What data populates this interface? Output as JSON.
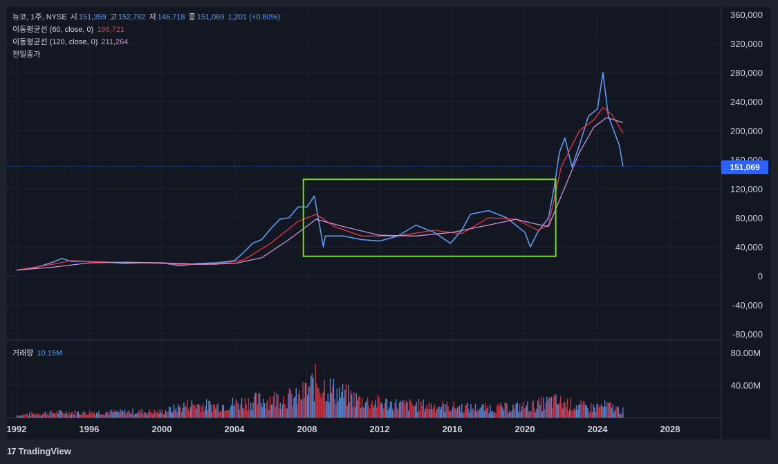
{
  "header": {
    "name": "뉴코, 1주, NYSE",
    "open_label": "시",
    "open": "151,359",
    "high_label": "고",
    "high": "152,782",
    "low_label": "저",
    "low": "146,718",
    "close_label": "종",
    "close": "151,069",
    "change": "1,201 (+0.80%)"
  },
  "indicators": [
    {
      "label": "이동평균선 (60, close, 0)",
      "value": "196,721",
      "color": "#f23645"
    },
    {
      "label": "이동평균선 (120, close, 0)",
      "value": "211,264",
      "color": "#ce93d8"
    },
    {
      "label": "전일종가",
      "value": ""
    }
  ],
  "volume_pane": {
    "label": "거래량",
    "value": "10.15M",
    "ticks": [
      "80.00M",
      "40.00M"
    ]
  },
  "price_tag": "151,069",
  "brand": "TradingView",
  "colors": {
    "bg": "#1e222d",
    "up": "#5b9cf6",
    "down": "#f23645",
    "ma60": "#f23645",
    "ma120": "#ce93d8",
    "box": "#76e01d"
  },
  "chart_data": {
    "type": "line",
    "title": "뉴코, 1주, NYSE",
    "x_ticks": [
      "1992",
      "1996",
      "2000",
      "2004",
      "2008",
      "2012",
      "2016",
      "2020",
      "2024",
      "2028"
    ],
    "y_ticks": [
      "360,000",
      "320,000",
      "280,000",
      "240,000",
      "200,000",
      "160,000",
      "120,000",
      "80,000",
      "40,000",
      "0",
      "-40,000",
      "-80,000"
    ],
    "ylim": [
      -80000,
      360000
    ],
    "xlim": [
      1992,
      2031
    ],
    "last_price": 151069,
    "series": [
      {
        "name": "",
        "color": "#5b9cf6",
        "x": [
          1992,
          1993,
          1994,
          1994.5,
          1995,
          1996,
          1997,
          1998,
          1999,
          2000,
          2001,
          2002,
          2003,
          2004,
          2004.5,
          2005,
          2005.5,
          2006,
          2006.5,
          2007,
          2007.5,
          2008,
          2008.4,
          2008.9,
          2009,
          2010,
          2011,
          2012,
          2013,
          2014,
          2015,
          2015.9,
          2016.5,
          2017,
          2018,
          2019,
          2019.5,
          2020,
          2020.3,
          2020.7,
          2021,
          2021.3,
          2021.6,
          2021.9,
          2022.2,
          2022.6,
          2023,
          2023.5,
          2024,
          2024.3,
          2024.6,
          2024.9,
          2025.2,
          2025.4
        ],
        "y": [
          8000,
          11000,
          19000,
          24000,
          20000,
          20000,
          19000,
          17000,
          18000,
          18000,
          14000,
          17000,
          18000,
          21000,
          32000,
          45000,
          50000,
          65000,
          78000,
          80000,
          95000,
          95000,
          110000,
          40000,
          55000,
          55000,
          50000,
          48000,
          55000,
          70000,
          60000,
          45000,
          62000,
          85000,
          90000,
          80000,
          70000,
          60000,
          40000,
          60000,
          70000,
          80000,
          120000,
          170000,
          190000,
          150000,
          180000,
          220000,
          230000,
          280000,
          220000,
          200000,
          180000,
          151069
        ]
      },
      {
        "name": "이동평균선 (60, close, 0)",
        "color": "#f23645",
        "x": [
          1992,
          1994,
          1995,
          1997,
          1999,
          2001,
          2003,
          2004.5,
          2006,
          2007.5,
          2008.5,
          2009.5,
          2011,
          2013,
          2015,
          2016.5,
          2018,
          2019.5,
          2020.7,
          2021.3,
          2022,
          2023,
          2023.8,
          2024.3,
          2024.8,
          2025.4
        ],
        "y": [
          8000,
          16000,
          21000,
          19000,
          18000,
          16000,
          16000,
          22000,
          45000,
          75000,
          85000,
          68000,
          55000,
          55000,
          63000,
          58000,
          80000,
          78000,
          63000,
          70000,
          150000,
          200000,
          215000,
          232000,
          222000,
          196721
        ]
      },
      {
        "name": "이동평균선 (120, close, 0)",
        "color": "#ce93d8",
        "x": [
          1992,
          1994,
          1996,
          1998,
          2000,
          2002,
          2004,
          2005.5,
          2007,
          2008.5,
          2010,
          2012,
          2014,
          2016,
          2018,
          2019.5,
          2020.5,
          2021.3,
          2022,
          2023,
          2023.8,
          2024.5,
          2025.4
        ],
        "y": [
          8000,
          12000,
          18000,
          19000,
          18000,
          16000,
          17000,
          25000,
          50000,
          78000,
          68000,
          56000,
          55000,
          60000,
          70000,
          78000,
          72000,
          68000,
          110000,
          170000,
          205000,
          218000,
          211264
        ]
      }
    ],
    "volume": {
      "x": [
        1992,
        1994,
        1996,
        1998,
        2000,
        2001.5,
        2003,
        2005,
        2006.5,
        2007.5,
        2008.5,
        2009.5,
        2011,
        2013,
        2015,
        2017,
        2019,
        2020.5,
        2021.5,
        2022.5,
        2023.5,
        2024.5,
        2025.4
      ],
      "values_m": [
        4,
        8,
        8,
        9,
        9,
        20,
        18,
        25,
        30,
        30,
        55,
        40,
        25,
        20,
        18,
        15,
        15,
        18,
        25,
        20,
        15,
        18,
        10.15
      ]
    },
    "annotations": [
      {
        "type": "rectangle",
        "x_start": 2007.8,
        "x_end": 2021.7,
        "y_top": 133000,
        "y_bottom": 27000,
        "color": "#76e01d"
      }
    ]
  }
}
